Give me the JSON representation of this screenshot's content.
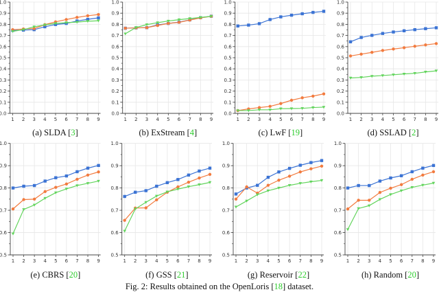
{
  "colors": {
    "blue": "#3b73d4",
    "orange": "#f27b3f",
    "green": "#62d45c"
  },
  "figure_caption": {
    "prefix": "Fig. 2: Results obtained on the OpenLoris [",
    "cite": "18",
    "suffix": "] dataset."
  },
  "chart_data": [
    {
      "type": "line",
      "caption": {
        "label": "(a) SLDA [",
        "cite": "3",
        "close": "]"
      },
      "x": [
        1,
        2,
        3,
        4,
        5,
        6,
        7,
        8,
        9
      ],
      "ylim": [
        0,
        1
      ],
      "yticks": [
        "0.0",
        "0.1",
        "0.2",
        "0.3",
        "0.4",
        "0.5",
        "0.6",
        "0.7",
        "0.8",
        "0.9",
        "1.0"
      ],
      "grid": true,
      "series": [
        {
          "color": "blue",
          "marker": "square",
          "values": [
            0.745,
            0.748,
            0.752,
            0.778,
            0.798,
            0.808,
            0.83,
            0.845,
            0.858
          ]
        },
        {
          "color": "orange",
          "marker": "circle",
          "values": [
            0.752,
            0.758,
            0.762,
            0.797,
            0.822,
            0.843,
            0.862,
            0.877,
            0.888
          ]
        },
        {
          "color": "green",
          "marker": "triangle-down",
          "values": [
            0.737,
            0.752,
            0.778,
            0.795,
            0.808,
            0.815,
            0.82,
            0.828,
            0.832
          ]
        }
      ]
    },
    {
      "type": "line",
      "caption": {
        "label": "(b) ExStream [",
        "cite": "4",
        "close": "]"
      },
      "x": [
        1,
        2,
        3,
        4,
        5,
        6,
        7,
        8,
        9
      ],
      "ylim": [
        0,
        1
      ],
      "yticks": [
        "0.0",
        "0.1",
        "0.2",
        "0.3",
        "0.4",
        "0.5",
        "0.6",
        "0.7",
        "0.8",
        "0.9",
        "1.0"
      ],
      "grid": true,
      "series": [
        {
          "color": "blue",
          "marker": "square",
          "values": [
            0.765,
            0.768,
            0.77,
            0.795,
            0.808,
            0.82,
            0.84,
            0.86,
            0.873
          ]
        },
        {
          "color": "orange",
          "marker": "circle",
          "values": [
            0.765,
            0.768,
            0.77,
            0.79,
            0.808,
            0.818,
            0.838,
            0.858,
            0.872
          ]
        },
        {
          "color": "green",
          "marker": "triangle-down",
          "values": [
            0.715,
            0.772,
            0.797,
            0.815,
            0.83,
            0.842,
            0.852,
            0.862,
            0.872
          ]
        }
      ]
    },
    {
      "type": "line",
      "caption": {
        "label": "(c) LwF [",
        "cite": "19",
        "close": "]"
      },
      "x": [
        1,
        2,
        3,
        4,
        5,
        6,
        7,
        8,
        9
      ],
      "ylim": [
        0,
        1
      ],
      "yticks": [
        "0.0",
        "0.1",
        "0.2",
        "0.3",
        "0.4",
        "0.5",
        "0.6",
        "0.7",
        "0.8",
        "0.9",
        "1.0"
      ],
      "grid": true,
      "series": [
        {
          "color": "blue",
          "marker": "square",
          "values": [
            0.785,
            0.793,
            0.806,
            0.843,
            0.867,
            0.882,
            0.895,
            0.907,
            0.917
          ]
        },
        {
          "color": "orange",
          "marker": "circle",
          "values": [
            0.025,
            0.04,
            0.052,
            0.063,
            0.088,
            0.118,
            0.14,
            0.155,
            0.175
          ]
        },
        {
          "color": "green",
          "marker": "triangle-down",
          "values": [
            0.025,
            0.025,
            0.032,
            0.032,
            0.042,
            0.043,
            0.045,
            0.052,
            0.056
          ]
        }
      ]
    },
    {
      "type": "line",
      "caption": {
        "label": "(d) SSLAD [",
        "cite": "2",
        "close": "]"
      },
      "x": [
        1,
        2,
        3,
        4,
        5,
        6,
        7,
        8,
        9
      ],
      "ylim": [
        0,
        1
      ],
      "yticks": [
        "0.0",
        "0.1",
        "0.2",
        "0.3",
        "0.4",
        "0.5",
        "0.6",
        "0.7",
        "0.8",
        "0.9",
        "1.0"
      ],
      "grid": true,
      "series": [
        {
          "color": "blue",
          "marker": "square",
          "values": [
            0.643,
            0.682,
            0.701,
            0.718,
            0.731,
            0.742,
            0.752,
            0.761,
            0.769
          ]
        },
        {
          "color": "orange",
          "marker": "circle",
          "values": [
            0.516,
            0.532,
            0.548,
            0.565,
            0.578,
            0.59,
            0.603,
            0.615,
            0.627
          ]
        },
        {
          "color": "green",
          "marker": "triangle-down",
          "values": [
            0.318,
            0.323,
            0.334,
            0.34,
            0.347,
            0.354,
            0.36,
            0.372,
            0.382
          ]
        }
      ]
    },
    {
      "type": "line",
      "caption": {
        "label": "(e) CBRS [",
        "cite": "20",
        "close": "]"
      },
      "x": [
        1,
        2,
        3,
        4,
        5,
        6,
        7,
        8,
        9
      ],
      "ylim": [
        0.5,
        1
      ],
      "yticks": [
        "0.5",
        "0.6",
        "0.7",
        "0.8",
        "0.9",
        "1.0"
      ],
      "grid": true,
      "series": [
        {
          "color": "blue",
          "marker": "square",
          "values": [
            0.8,
            0.808,
            0.811,
            0.831,
            0.846,
            0.854,
            0.873,
            0.889,
            0.901
          ]
        },
        {
          "color": "orange",
          "marker": "circle",
          "values": [
            0.706,
            0.748,
            0.75,
            0.784,
            0.803,
            0.818,
            0.839,
            0.858,
            0.872
          ]
        },
        {
          "color": "green",
          "marker": "triangle-down",
          "values": [
            0.595,
            0.704,
            0.724,
            0.754,
            0.779,
            0.796,
            0.811,
            0.821,
            0.831
          ]
        }
      ]
    },
    {
      "type": "line",
      "caption": {
        "label": "(f) GSS [",
        "cite": "21",
        "close": "]"
      },
      "x": [
        1,
        2,
        3,
        4,
        5,
        6,
        7,
        8,
        9
      ],
      "ylim": [
        0.5,
        1
      ],
      "yticks": [
        "0.5",
        "0.6",
        "0.7",
        "0.8",
        "0.9",
        "1.0"
      ],
      "grid": true,
      "series": [
        {
          "color": "blue",
          "marker": "square",
          "values": [
            0.762,
            0.781,
            0.788,
            0.808,
            0.824,
            0.838,
            0.858,
            0.876,
            0.889
          ]
        },
        {
          "color": "orange",
          "marker": "circle",
          "values": [
            0.655,
            0.71,
            0.711,
            0.747,
            0.781,
            0.805,
            0.826,
            0.845,
            0.861
          ]
        },
        {
          "color": "green",
          "marker": "triangle-down",
          "values": [
            0.607,
            0.706,
            0.736,
            0.764,
            0.783,
            0.795,
            0.806,
            0.815,
            0.825
          ]
        }
      ]
    },
    {
      "type": "line",
      "caption": {
        "label": "(g) Reservoir [",
        "cite": "22",
        "close": "]"
      },
      "x": [
        1,
        2,
        3,
        4,
        5,
        6,
        7,
        8,
        9
      ],
      "ylim": [
        0.5,
        1
      ],
      "yticks": [
        "0.5",
        "0.6",
        "0.7",
        "0.8",
        "0.9",
        "1.0"
      ],
      "grid": true,
      "series": [
        {
          "color": "blue",
          "marker": "square",
          "values": [
            0.773,
            0.8,
            0.812,
            0.848,
            0.872,
            0.888,
            0.902,
            0.914,
            0.923
          ]
        },
        {
          "color": "orange",
          "marker": "circle",
          "values": [
            0.75,
            0.805,
            0.777,
            0.812,
            0.835,
            0.853,
            0.872,
            0.886,
            0.898
          ]
        },
        {
          "color": "green",
          "marker": "triangle-down",
          "values": [
            0.715,
            0.742,
            0.77,
            0.788,
            0.8,
            0.812,
            0.821,
            0.828,
            0.834
          ]
        }
      ]
    },
    {
      "type": "line",
      "caption": {
        "label": "(h) Random [",
        "cite": "20",
        "close": "]"
      },
      "x": [
        1,
        2,
        3,
        4,
        5,
        6,
        7,
        8,
        9
      ],
      "ylim": [
        0.5,
        1
      ],
      "yticks": [
        "0.5",
        "0.6",
        "0.7",
        "0.8",
        "0.9",
        "1.0"
      ],
      "grid": true,
      "series": [
        {
          "color": "blue",
          "marker": "square",
          "values": [
            0.8,
            0.811,
            0.811,
            0.831,
            0.845,
            0.855,
            0.873,
            0.889,
            0.901
          ]
        },
        {
          "color": "orange",
          "marker": "circle",
          "values": [
            0.706,
            0.745,
            0.745,
            0.78,
            0.799,
            0.815,
            0.839,
            0.858,
            0.873
          ]
        },
        {
          "color": "green",
          "marker": "triangle-down",
          "values": [
            0.614,
            0.708,
            0.721,
            0.749,
            0.771,
            0.788,
            0.803,
            0.813,
            0.822
          ]
        }
      ]
    }
  ]
}
